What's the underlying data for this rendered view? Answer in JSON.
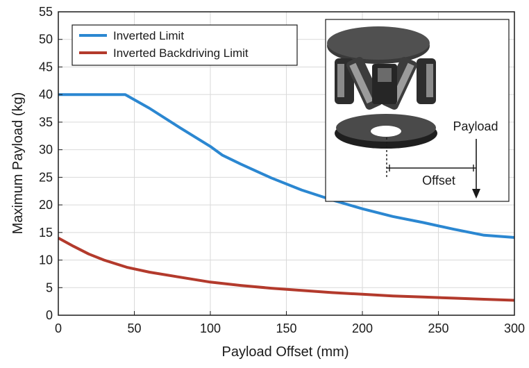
{
  "chart_data": {
    "type": "line",
    "title": "",
    "xlabel": "Payload Offset (mm)",
    "ylabel": "Maximum Payload (kg)",
    "xlim": [
      0,
      300
    ],
    "ylim": [
      0,
      55
    ],
    "xticks": [
      0,
      50,
      100,
      150,
      200,
      250,
      300
    ],
    "yticks": [
      0,
      5,
      10,
      15,
      20,
      25,
      30,
      35,
      40,
      45,
      50,
      55
    ],
    "grid": true,
    "legend_position": "top-left",
    "series": [
      {
        "name": "Inverted Limit",
        "color": "#2b87d1",
        "x": [
          0,
          10,
          20,
          30,
          44,
          60,
          80,
          100,
          108,
          120,
          140,
          160,
          180,
          200,
          220,
          240,
          260,
          280,
          300
        ],
        "y": [
          40,
          40,
          40,
          40,
          40,
          37.5,
          34.0,
          30.6,
          29.0,
          27.4,
          24.9,
          22.7,
          20.9,
          19.3,
          17.9,
          16.8,
          15.6,
          14.5,
          14.1
        ]
      },
      {
        "name": "Inverted Backdriving Limit",
        "color": "#b33a2c",
        "x": [
          0,
          10,
          20,
          30,
          45,
          60,
          80,
          100,
          120,
          140,
          160,
          180,
          200,
          220,
          240,
          260,
          280,
          300
        ],
        "y": [
          14.0,
          12.5,
          11.1,
          10.0,
          8.7,
          7.8,
          6.9,
          6.0,
          5.4,
          4.9,
          4.5,
          4.1,
          3.8,
          3.5,
          3.3,
          3.1,
          2.9,
          2.7
        ]
      }
    ]
  },
  "inset": {
    "payload_label": "Payload",
    "offset_label": "Offset"
  }
}
